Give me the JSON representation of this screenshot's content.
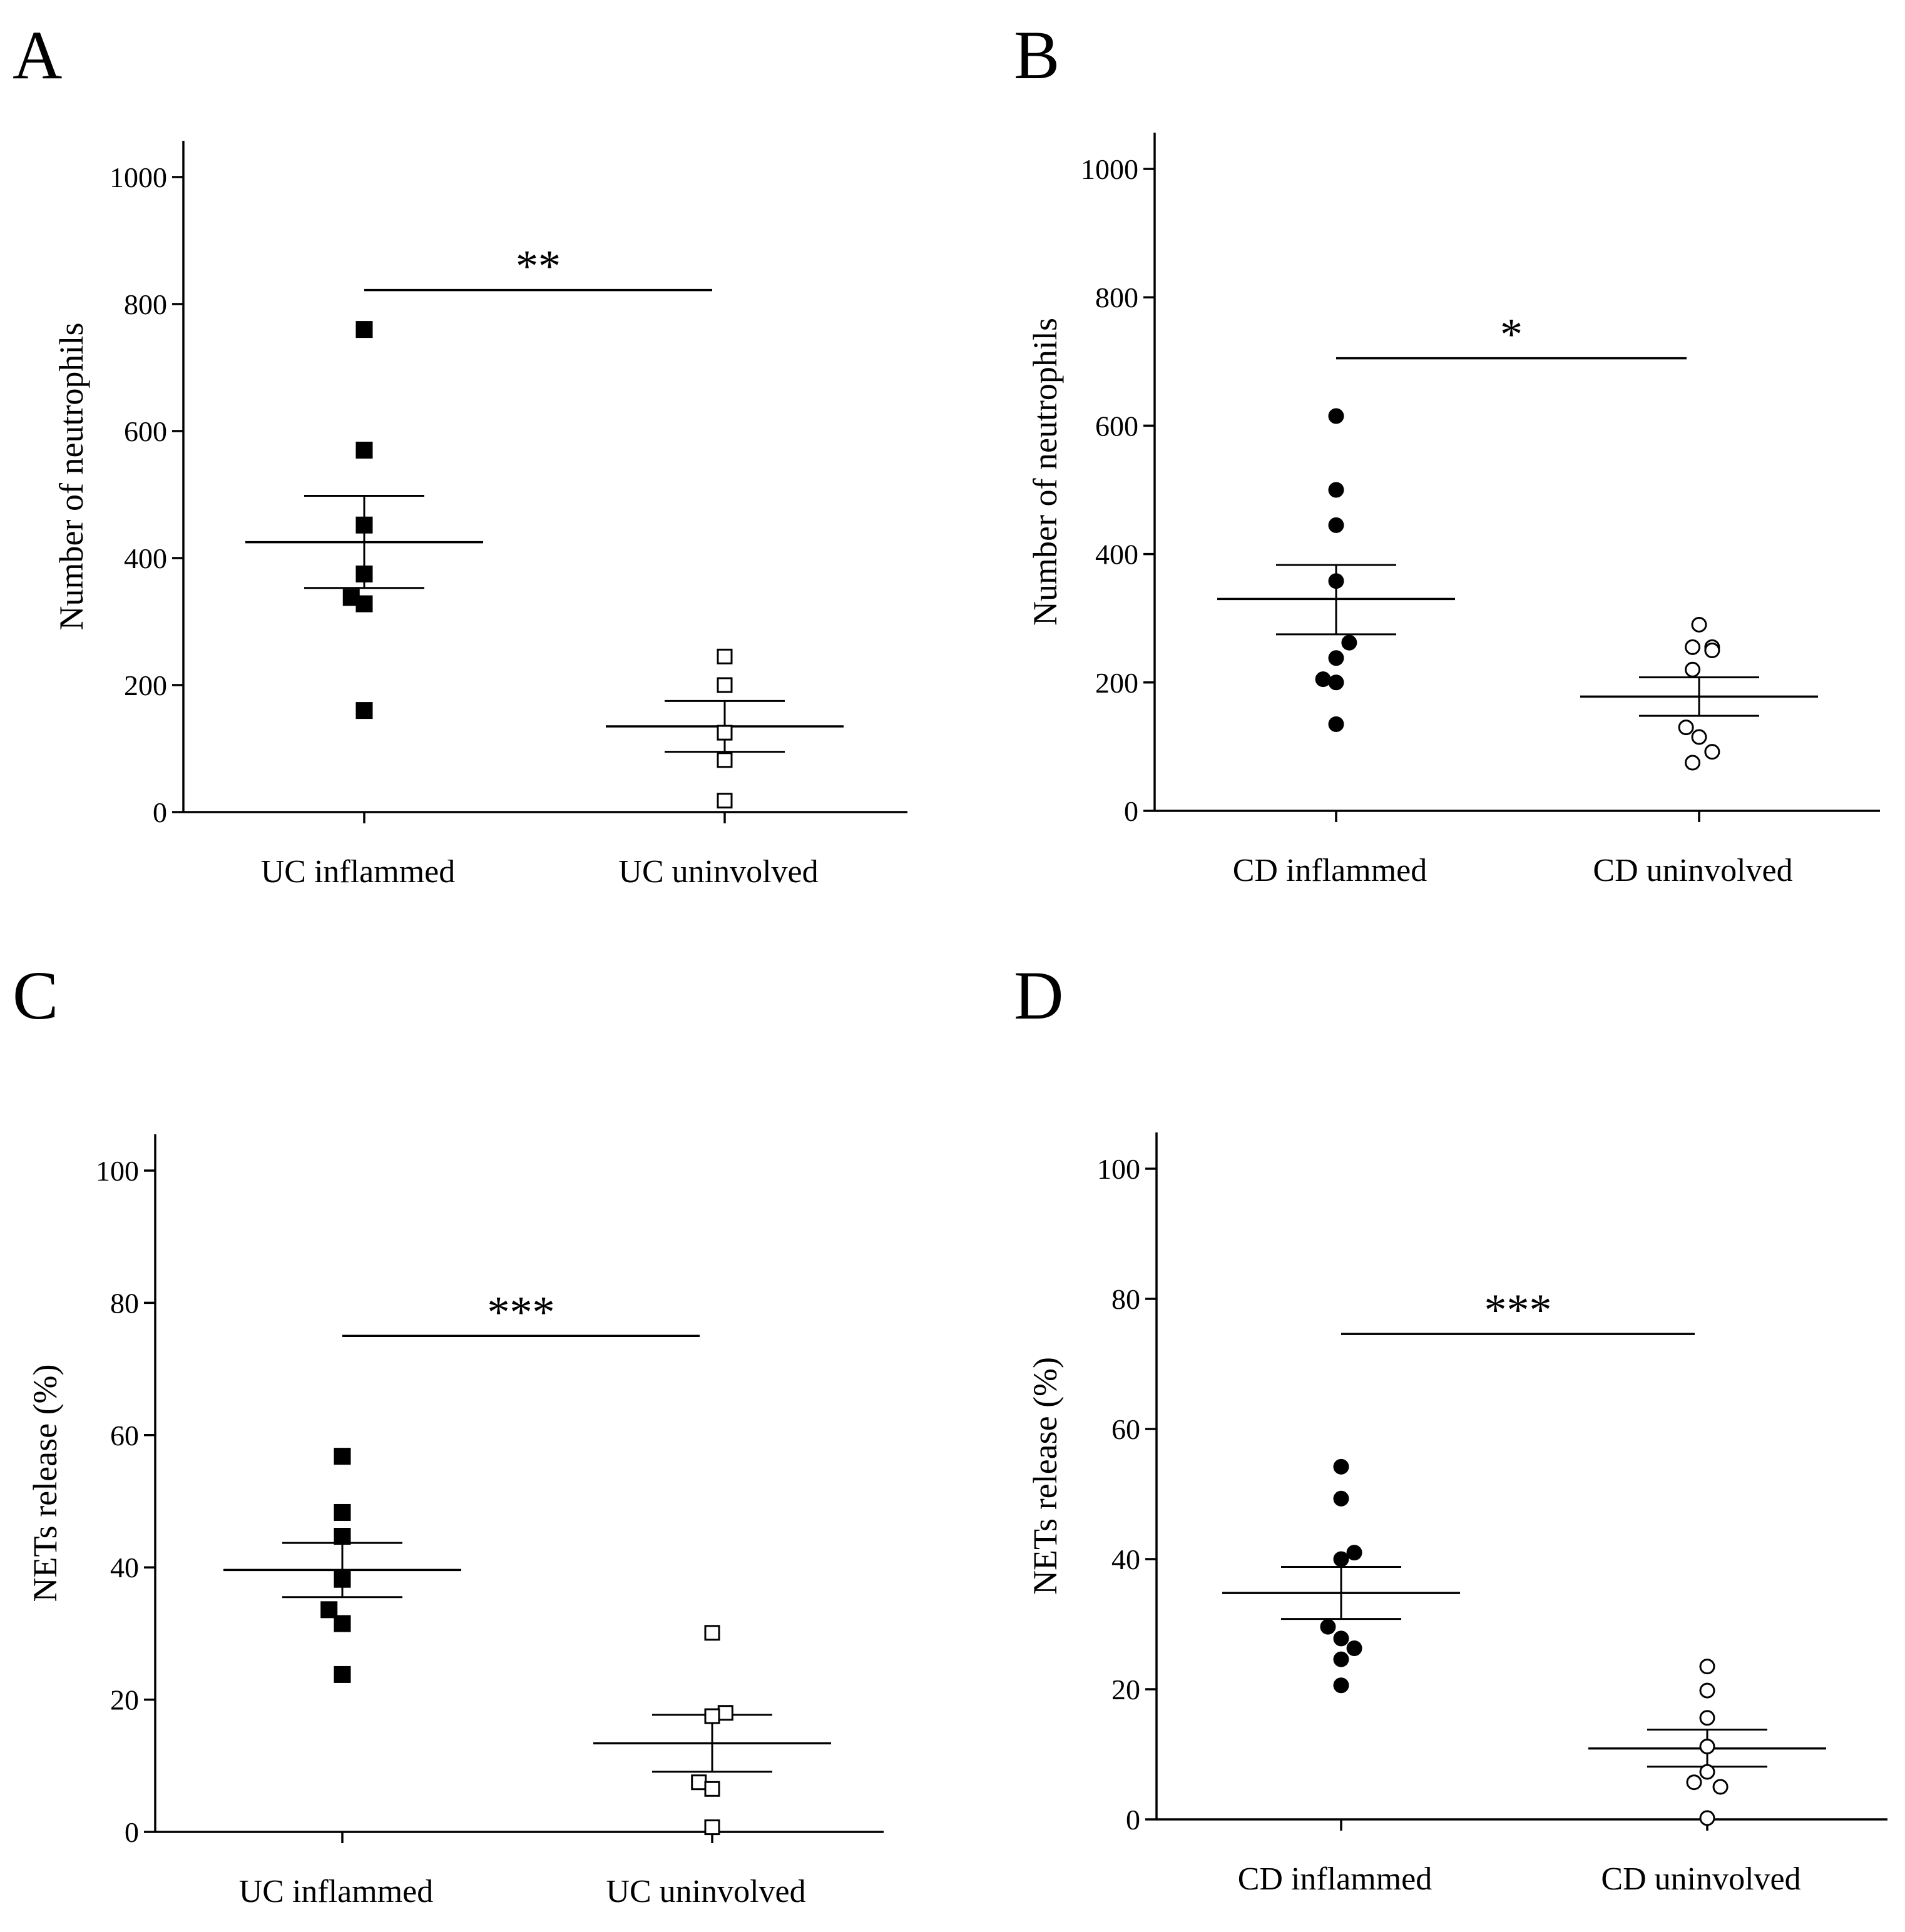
{
  "chart_data": [
    {
      "panel": "A",
      "type": "scatter",
      "ylabel": "Number of neutrophils",
      "ylim": [
        0,
        1000
      ],
      "yticks": [
        0,
        200,
        400,
        600,
        800,
        1000
      ],
      "categories": [
        "UC inflammed",
        "UC uninvolved"
      ],
      "groups": [
        {
          "category": "UC inflammed",
          "marker": "square",
          "filled": true,
          "mean": 425,
          "sem_upper": 498,
          "sem_lower": 353,
          "points": [
            {
              "x": 0,
              "y": 760
            },
            {
              "x": 0,
              "y": 570
            },
            {
              "x": 0,
              "y": 452
            },
            {
              "x": 0,
              "y": 375
            },
            {
              "x": -0.06,
              "y": 338
            },
            {
              "x": 0,
              "y": 328
            },
            {
              "x": 0,
              "y": 160
            }
          ]
        },
        {
          "category": "UC uninvolved",
          "marker": "square",
          "filled": false,
          "mean": 135,
          "sem_upper": 175,
          "sem_lower": 95,
          "points": [
            {
              "x": 0,
              "y": 245
            },
            {
              "x": 0,
              "y": 200
            },
            {
              "x": 0,
              "y": 125
            },
            {
              "x": 0,
              "y": 82
            },
            {
              "x": 0,
              "y": 18
            }
          ]
        }
      ],
      "significance": {
        "label": "**",
        "y": 822
      }
    },
    {
      "panel": "B",
      "type": "scatter",
      "ylabel": "Number of neutrophils",
      "ylim": [
        0,
        1000
      ],
      "yticks": [
        0,
        200,
        400,
        600,
        800,
        1000
      ],
      "categories": [
        "CD inflammed",
        "CD uninvolved"
      ],
      "groups": [
        {
          "category": "CD inflammed",
          "marker": "circle",
          "filled": true,
          "mean": 330,
          "sem_upper": 383,
          "sem_lower": 275,
          "points": [
            {
              "x": 0,
              "y": 615
            },
            {
              "x": 0,
              "y": 500
            },
            {
              "x": 0,
              "y": 445
            },
            {
              "x": 0,
              "y": 358
            },
            {
              "x": 0.06,
              "y": 262
            },
            {
              "x": 0,
              "y": 238
            },
            {
              "x": -0.06,
              "y": 205
            },
            {
              "x": 0,
              "y": 200
            },
            {
              "x": 0,
              "y": 135
            }
          ]
        },
        {
          "category": "CD uninvolved",
          "marker": "circle",
          "filled": false,
          "mean": 178,
          "sem_upper": 208,
          "sem_lower": 148,
          "points": [
            {
              "x": 0,
              "y": 290
            },
            {
              "x": -0.03,
              "y": 255
            },
            {
              "x": 0.06,
              "y": 255
            },
            {
              "x": 0.06,
              "y": 250
            },
            {
              "x": -0.03,
              "y": 220
            },
            {
              "x": -0.06,
              "y": 130
            },
            {
              "x": 0,
              "y": 115
            },
            {
              "x": 0.06,
              "y": 92
            },
            {
              "x": -0.03,
              "y": 75
            }
          ]
        }
      ],
      "significance": {
        "label": "*",
        "y": 705
      }
    },
    {
      "panel": "C",
      "type": "scatter",
      "ylabel": "NETs release (%)",
      "ylim": [
        0,
        100
      ],
      "yticks": [
        0,
        20,
        40,
        60,
        80,
        100
      ],
      "categories": [
        "UC inflammed",
        "UC uninvolved"
      ],
      "groups": [
        {
          "category": "UC inflammed",
          "marker": "square",
          "filled": true,
          "mean": 39.6,
          "sem_upper": 43.7,
          "sem_lower": 35.5,
          "points": [
            {
              "x": 0,
              "y": 56.8
            },
            {
              "x": 0,
              "y": 48.3
            },
            {
              "x": 0,
              "y": 44.7
            },
            {
              "x": 0,
              "y": 38.2
            },
            {
              "x": -0.06,
              "y": 33.6
            },
            {
              "x": 0,
              "y": 31.5
            },
            {
              "x": 0,
              "y": 23.8
            }
          ]
        },
        {
          "category": "UC uninvolved",
          "marker": "square",
          "filled": false,
          "mean": 13.4,
          "sem_upper": 17.7,
          "sem_lower": 9.1,
          "points": [
            {
              "x": 0,
              "y": 30.1
            },
            {
              "x": 0.06,
              "y": 18.0
            },
            {
              "x": 0,
              "y": 17.5
            },
            {
              "x": -0.06,
              "y": 7.5
            },
            {
              "x": 0,
              "y": 6.5
            },
            {
              "x": 0,
              "y": 0.7
            }
          ]
        }
      ],
      "significance": {
        "label": "***",
        "y": 75
      }
    },
    {
      "panel": "D",
      "type": "scatter",
      "ylabel": "NETs release (%)",
      "ylim": [
        0,
        100
      ],
      "yticks": [
        0,
        20,
        40,
        60,
        80,
        100
      ],
      "categories": [
        "CD inflammed",
        "CD uninvolved"
      ],
      "groups": [
        {
          "category": "CD inflammed",
          "marker": "circle",
          "filled": true,
          "mean": 34.8,
          "sem_upper": 38.8,
          "sem_lower": 30.8,
          "points": [
            {
              "x": 0,
              "y": 54.2
            },
            {
              "x": 0,
              "y": 49.3
            },
            {
              "x": 0.06,
              "y": 41.0
            },
            {
              "x": 0,
              "y": 40.0
            },
            {
              "x": -0.06,
              "y": 29.6
            },
            {
              "x": 0,
              "y": 27.8
            },
            {
              "x": 0.06,
              "y": 26.3
            },
            {
              "x": 0,
              "y": 24.6
            },
            {
              "x": 0,
              "y": 20.6
            }
          ]
        },
        {
          "category": "CD uninvolved",
          "marker": "circle",
          "filled": false,
          "mean": 10.9,
          "sem_upper": 13.8,
          "sem_lower": 8.1,
          "points": [
            {
              "x": 0,
              "y": 23.5
            },
            {
              "x": 0,
              "y": 19.8
            },
            {
              "x": 0,
              "y": 15.6
            },
            {
              "x": 0,
              "y": 11.2
            },
            {
              "x": 0,
              "y": 7.3
            },
            {
              "x": -0.06,
              "y": 5.7
            },
            {
              "x": 0.06,
              "y": 5.0
            },
            {
              "x": 0,
              "y": 0.2
            }
          ]
        }
      ],
      "significance": {
        "label": "***",
        "y": 74.6
      }
    }
  ]
}
